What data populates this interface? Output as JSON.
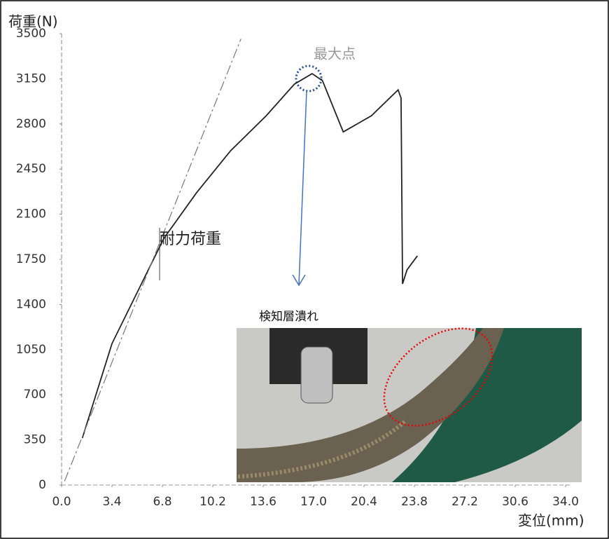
{
  "chart_data": {
    "type": "line",
    "y_label": "荷重(N)",
    "x_label": "変位(mm)",
    "xlim": [
      0,
      34
    ],
    "ylim": [
      0,
      3500
    ],
    "xticks": [
      {
        "value": 0,
        "label": "0.0"
      },
      3.4,
      6.8,
      10.2,
      13.6,
      {
        "value": 17,
        "label": "17.0"
      },
      20.4,
      23.8,
      27.2,
      30.6,
      {
        "value": 34,
        "label": "34.0"
      }
    ],
    "yticks": [
      0,
      350,
      700,
      1050,
      1400,
      1750,
      2100,
      2450,
      2800,
      3150,
      3500
    ],
    "series": [
      {
        "color": "#222",
        "x": [
          1.4,
          3.4,
          5.5,
          6.9,
          9.1,
          11.4,
          13.8,
          15.7,
          16.9,
          17.6,
          19.0,
          20.9,
          22.7,
          22.9,
          23.0,
          23.3,
          24.0
        ],
        "values": [
          364,
          1097,
          1587,
          1913,
          2266,
          2592,
          2863,
          3108,
          3190,
          3135,
          2738,
          2863,
          3064,
          3000,
          1560,
          1668,
          1777
        ]
      },
      {
        "color": "#777",
        "dashed": true,
        "x": [
          0.2,
          12.1
        ],
        "values": [
          30,
          3460
        ]
      }
    ],
    "annotations": [
      {
        "text": "最大点"
      },
      {
        "text": "耐力荷重"
      },
      {
        "text": "検知層潰れ"
      }
    ]
  }
}
